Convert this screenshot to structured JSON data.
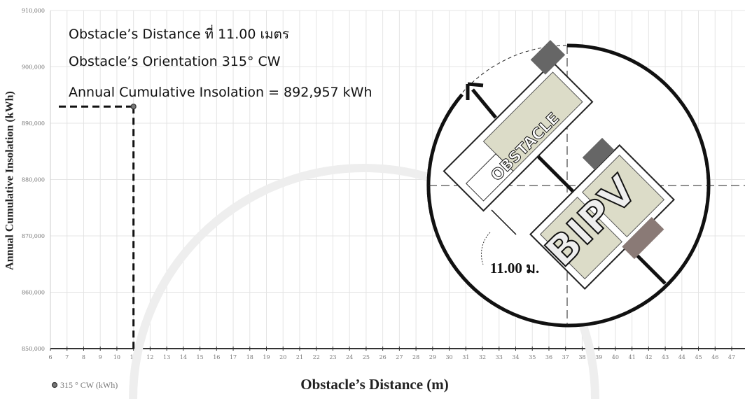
{
  "chart_data": {
    "type": "scatter",
    "annotations": [
      "Obstacle’s Distance ที่ 11.00 เมตร",
      "Obstacle’s Orientation 315° CW",
      "Annual Cumulative Insolation = 892,957 kWh"
    ],
    "xlabel": "Obstacle’s Distance (m)",
    "ylabel": "Annual Cumulative Insolation (kWh)",
    "series": [
      {
        "name": "315 ° CW (kWh)",
        "color": "#777777",
        "x": [
          11
        ],
        "values": [
          892957
        ]
      }
    ],
    "xlim": [
      6,
      47.8
    ],
    "xticks": [
      6,
      7,
      8,
      9,
      10,
      11,
      12,
      13,
      14,
      15,
      16,
      17,
      18,
      19,
      20,
      21,
      22,
      23,
      24,
      25,
      26,
      27,
      28,
      29,
      30,
      31,
      32,
      33,
      34,
      35,
      36,
      37,
      38,
      39,
      40,
      41,
      42,
      43,
      44,
      45,
      46,
      47
    ],
    "ylim": [
      850000,
      910000
    ],
    "yticks": [
      {
        "value": 850000,
        "label": "850,000"
      },
      {
        "value": 860000,
        "label": "860,000"
      },
      {
        "value": 870000,
        "label": "870,000"
      },
      {
        "value": 880000,
        "label": "880,000"
      },
      {
        "value": 890000,
        "label": "890,000"
      },
      {
        "value": 900000,
        "label": "900,000"
      },
      {
        "value": 910000,
        "label": "910,000"
      }
    ],
    "grid": true,
    "diagram": {
      "obstacle_label": "OBSTACLE",
      "building_label": "BIPV",
      "distance_label": "11.00 ม."
    }
  }
}
